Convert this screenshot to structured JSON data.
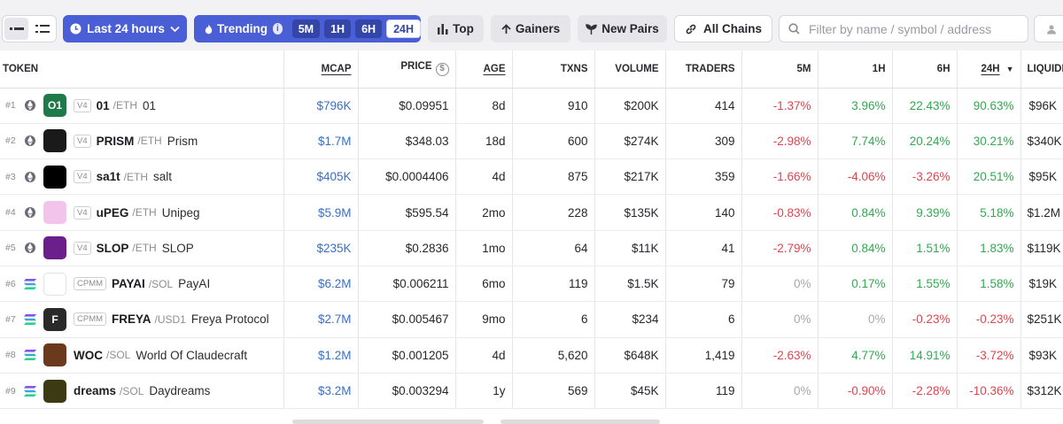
{
  "toolbar": {
    "time_label": "Last 24 hours",
    "trending_label": "Trending",
    "info_glyph": "i",
    "timeframes": [
      "5M",
      "1H",
      "6H",
      "24H"
    ],
    "active_timeframe": "24H",
    "top_label": "Top",
    "gainers_label": "Gainers",
    "new_pairs_label": "New Pairs",
    "chains_label": "All Chains",
    "search_placeholder": "Filter by name / symbol / address"
  },
  "table": {
    "columns": [
      "TOKEN",
      "MCAP",
      "PRICE",
      "AGE",
      "TXNS",
      "VOLUME",
      "TRADERS",
      "5M",
      "1H",
      "6H",
      "24H",
      "LIQUIDITY"
    ],
    "price_icon_glyph": "$",
    "rows": [
      {
        "rank": "#1",
        "chain": "ETH",
        "chain_icon": "ethereum-icon",
        "logo_icon": "01-token-logo",
        "logo_text": "O1",
        "logo_color": "#1f7a4a",
        "dex": "V4",
        "symbol": "01",
        "quote": "/ETH",
        "name": "01",
        "mcap": "$796K",
        "price": "$0.09951",
        "age": "8d",
        "txns": "910",
        "volume": "$200K",
        "traders": "414",
        "m5": "-1.37%",
        "h1": "3.96%",
        "h6": "22.43%",
        "h24": "90.63%",
        "liquidity": "$96K"
      },
      {
        "rank": "#2",
        "chain": "ETH",
        "chain_icon": "ethereum-icon",
        "logo_icon": "prism-token-logo",
        "logo_text": "",
        "logo_color": "#1a1a1a",
        "dex": "V4",
        "symbol": "PRISM",
        "quote": "/ETH",
        "name": "Prism",
        "mcap": "$1.7M",
        "price": "$348.03",
        "age": "18d",
        "txns": "600",
        "volume": "$274K",
        "traders": "309",
        "m5": "-2.98%",
        "h1": "7.74%",
        "h6": "20.24%",
        "h24": "30.21%",
        "liquidity": "$340K"
      },
      {
        "rank": "#3",
        "chain": "ETH",
        "chain_icon": "ethereum-icon",
        "logo_icon": "salt-token-logo",
        "logo_text": "",
        "logo_color": "#000000",
        "dex": "V4",
        "symbol": "sa1t",
        "quote": "/ETH",
        "name": "salt",
        "mcap": "$405K",
        "price": "$0.0004406",
        "age": "4d",
        "txns": "875",
        "volume": "$217K",
        "traders": "359",
        "m5": "-1.66%",
        "h1": "-4.06%",
        "h6": "-3.26%",
        "h24": "20.51%",
        "liquidity": "$95K"
      },
      {
        "rank": "#4",
        "chain": "ETH",
        "chain_icon": "ethereum-icon",
        "logo_icon": "unipeg-token-logo",
        "logo_text": "",
        "logo_color": "#f2c4ec",
        "dex": "V4",
        "symbol": "uPEG",
        "quote": "/ETH",
        "name": "Unipeg",
        "mcap": "$5.9M",
        "price": "$595.54",
        "age": "2mo",
        "txns": "228",
        "volume": "$135K",
        "traders": "140",
        "m5": "-0.83%",
        "h1": "0.84%",
        "h6": "9.39%",
        "h24": "5.18%",
        "liquidity": "$1.2M"
      },
      {
        "rank": "#5",
        "chain": "ETH",
        "chain_icon": "ethereum-icon",
        "logo_icon": "slop-token-logo",
        "logo_text": "",
        "logo_color": "#6a1f8a",
        "dex": "V4",
        "symbol": "SLOP",
        "quote": "/ETH",
        "name": "SLOP",
        "mcap": "$235K",
        "price": "$0.2836",
        "age": "1mo",
        "txns": "64",
        "volume": "$11K",
        "traders": "41",
        "m5": "-2.79%",
        "h1": "0.84%",
        "h6": "1.51%",
        "h24": "1.83%",
        "liquidity": "$119K"
      },
      {
        "rank": "#6",
        "chain": "SOL",
        "chain_icon": "solana-icon",
        "logo_icon": "payai-token-logo",
        "logo_text": "",
        "logo_color": "#ffffff",
        "dex": "CPMM",
        "symbol": "PAYAI",
        "quote": "/SOL",
        "name": "PayAI",
        "mcap": "$6.2M",
        "price": "$0.006211",
        "age": "6mo",
        "txns": "119",
        "volume": "$1.5K",
        "traders": "79",
        "m5": "0%",
        "h1": "0.17%",
        "h6": "1.55%",
        "h24": "1.58%",
        "liquidity": "$19K"
      },
      {
        "rank": "#7",
        "chain": "SOL",
        "chain_icon": "solana-icon",
        "logo_icon": "freya-token-logo",
        "logo_text": "F",
        "logo_color": "#2a2a2a",
        "dex": "CPMM",
        "symbol": "FREYA",
        "quote": "/USD1",
        "name": "Freya Protocol",
        "mcap": "$2.7M",
        "price": "$0.005467",
        "age": "9mo",
        "txns": "6",
        "volume": "$234",
        "traders": "6",
        "m5": "0%",
        "h1": "0%",
        "h6": "-0.23%",
        "h24": "-0.23%",
        "liquidity": "$251K"
      },
      {
        "rank": "#8",
        "chain": "SOL",
        "chain_icon": "solana-icon",
        "logo_icon": "woc-token-logo",
        "logo_text": "",
        "logo_color": "#6b3a1c",
        "dex": "",
        "symbol": "WOC",
        "quote": "/SOL",
        "name": "World Of Claudecraft",
        "mcap": "$1.2M",
        "price": "$0.001205",
        "age": "4d",
        "txns": "5,620",
        "volume": "$648K",
        "traders": "1,419",
        "m5": "-2.63%",
        "h1": "4.77%",
        "h6": "14.91%",
        "h24": "-3.72%",
        "liquidity": "$93K"
      },
      {
        "rank": "#9",
        "chain": "SOL",
        "chain_icon": "solana-icon",
        "logo_icon": "daydreams-token-logo",
        "logo_text": "",
        "logo_color": "#3b3a12",
        "dex": "",
        "symbol": "dreams",
        "quote": "/SOL",
        "name": "Daydreams",
        "mcap": "$3.2M",
        "price": "$0.003294",
        "age": "1y",
        "txns": "569",
        "volume": "$45K",
        "traders": "119",
        "m5": "0%",
        "h1": "-0.90%",
        "h6": "-2.28%",
        "h24": "-10.36%",
        "liquidity": "$312K"
      }
    ]
  },
  "colors": {
    "accent": "#4a5fd6",
    "positive": "#34a852",
    "negative": "#e0454f",
    "neutral": "#a8a8b0",
    "mcap": "#3a6fc4"
  }
}
